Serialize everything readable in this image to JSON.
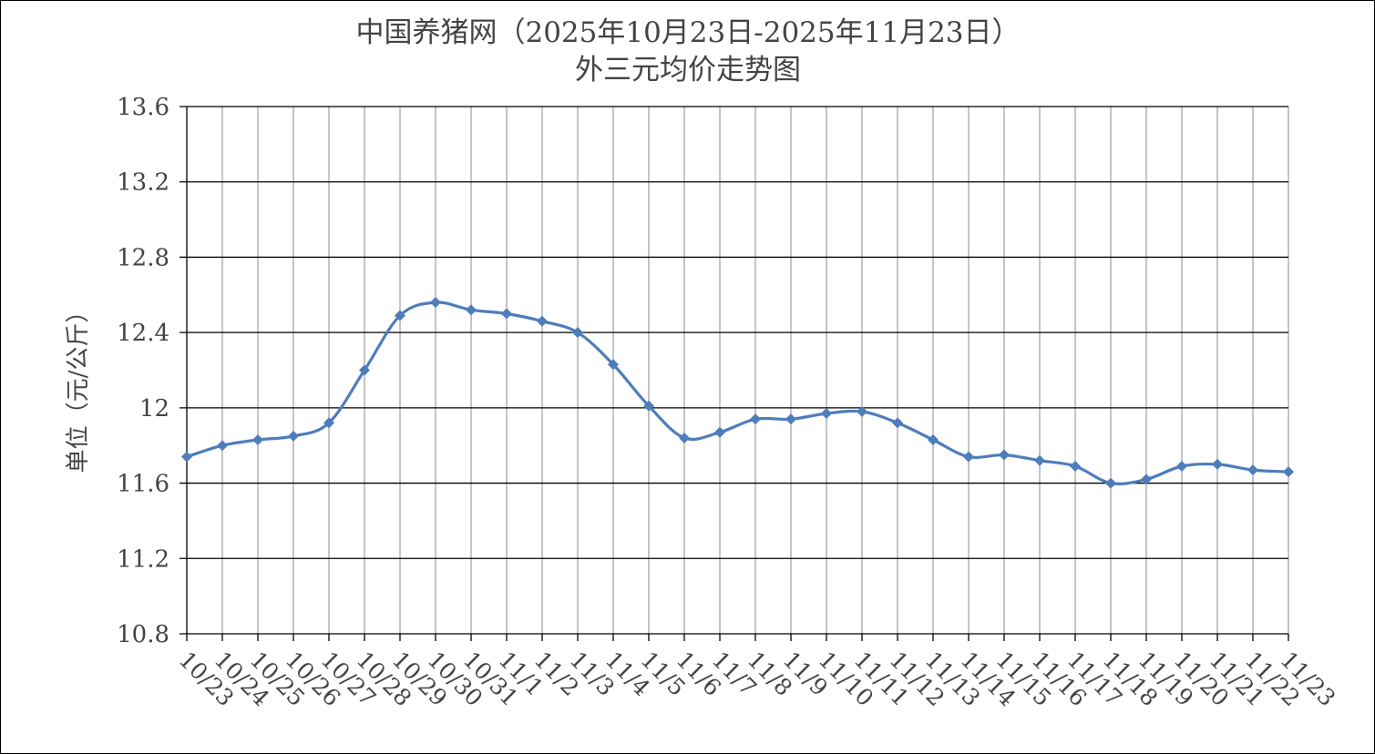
{
  "chart_data": {
    "type": "line",
    "title_line1": "中国养猪网（2025年10月23日-2025年11月23日）",
    "title_line2": "外三元均价走势图",
    "ylabel": "单位（元/公斤）",
    "xlabel": "",
    "ylim": [
      10.8,
      13.6
    ],
    "yticks": [
      "10.8",
      "11.2",
      "11.6",
      "12",
      "12.4",
      "12.8",
      "13.2",
      "13.6"
    ],
    "categories": [
      "10/23",
      "10/24",
      "10/25",
      "10/26",
      "10/27",
      "10/28",
      "10/29",
      "10/30",
      "10/31",
      "11/1",
      "11/2",
      "11/3",
      "11/4",
      "11/5",
      "11/6",
      "11/7",
      "11/8",
      "11/9",
      "11/10",
      "11/11",
      "11/12",
      "11/13",
      "11/14",
      "11/15",
      "11/16",
      "11/17",
      "11/18",
      "11/19",
      "11/20",
      "11/21",
      "11/22",
      "11/23"
    ],
    "series": [
      {
        "values": [
          11.74,
          11.8,
          11.83,
          11.85,
          11.92,
          12.2,
          12.49,
          12.56,
          12.52,
          12.5,
          12.46,
          12.4,
          12.23,
          12.01,
          11.84,
          11.87,
          11.94,
          11.94,
          11.97,
          11.98,
          11.92,
          11.83,
          11.74,
          11.75,
          11.72,
          11.69,
          11.6,
          11.62,
          11.69,
          11.7,
          11.67,
          11.66
        ],
        "color": "#4E7DBC"
      }
    ],
    "grid": "both",
    "legend": "none",
    "colors": {
      "line": "#4E7DBC",
      "grid_horizontal": "#000000",
      "grid_vertical": "#A6A6A6",
      "text": "#444444"
    }
  }
}
